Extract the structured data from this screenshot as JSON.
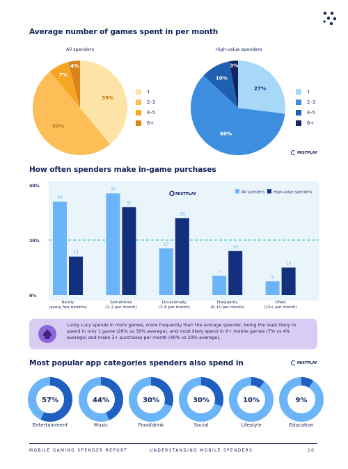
{
  "section1": {
    "title": "Average number of games spent in per month",
    "legend": [
      "1",
      "2–3",
      "4–5",
      "6+"
    ]
  },
  "section2": {
    "title": "How often spenders make in-game purchases",
    "legend": [
      "All spenders",
      "High-value spenders"
    ]
  },
  "section3": {
    "title": "Most popular app categories spenders also spend in"
  },
  "logo_text": "MISTPLAY",
  "callout": "Lucky Lucy spends in more games, more frequently than the average spender, being the least likely to spend in only 1 game (26% vs 39% average), and most likely spend in 6+ mobile games (7% vs 4% average) and make 3+ purchases per month (40% vs 29% average).",
  "footer": {
    "left": "MOBILE GAMING SPENDER REPORT",
    "center": "UNDERSTANDING MOBILE SPENDERS",
    "page": "10"
  },
  "colors": {
    "navy": "#12215a",
    "all_spenders": "#6ab4f7",
    "high_value": "#12307e",
    "pie1": [
      "#fde4a6",
      "#fdbd57",
      "#f6a623",
      "#d9841a"
    ],
    "pie2": [
      "#a8d8f8",
      "#3e8ee0",
      "#1f5fb0",
      "#0f2462"
    ]
  },
  "chart_data": [
    {
      "type": "pie",
      "title": "All spenders",
      "labels": [
        "1",
        "2–3",
        "4–5",
        "6+"
      ],
      "values": [
        39,
        50,
        7,
        4
      ],
      "value_labels": [
        "39%",
        "50%",
        "7%",
        "4%"
      ]
    },
    {
      "type": "pie",
      "title": "High-value spenders",
      "labels": [
        "1",
        "2–3",
        "4–5",
        "6+"
      ],
      "values": [
        27,
        60,
        10,
        3
      ],
      "value_labels": [
        "27%",
        "60%",
        "10%",
        "3%"
      ]
    },
    {
      "type": "bar",
      "title": "How often spenders make in-game purchases",
      "categories": [
        [
          "Rarely",
          "(every few months)"
        ],
        [
          "Sometimes",
          "(1–2 per month)"
        ],
        [
          "Occasionally",
          "(3–6 per month)"
        ],
        [
          "Frequently",
          "(6–10 per month)"
        ],
        [
          "Often",
          "(10+ per month)"
        ]
      ],
      "series": [
        {
          "name": "All spenders",
          "values": [
            34,
            37,
            17,
            7,
            5
          ]
        },
        {
          "name": "High-value spenders",
          "values": [
            14,
            32,
            28,
            16,
            10
          ]
        }
      ],
      "ylim": [
        0,
        40
      ],
      "yticks": [
        "0%",
        "20%",
        "40%"
      ],
      "reference_line": 20,
      "legend_position": "top-right"
    },
    {
      "type": "pie",
      "title": "Most popular app categories spenders also spend in",
      "categories": [
        "Entertainment",
        "Music",
        "Food/drink",
        "Social",
        "Lifestyle",
        "Education"
      ],
      "values": [
        57,
        44,
        30,
        30,
        10,
        9
      ],
      "value_labels": [
        "57%",
        "44%",
        "30%",
        "30%",
        "10%",
        "9%"
      ]
    }
  ]
}
